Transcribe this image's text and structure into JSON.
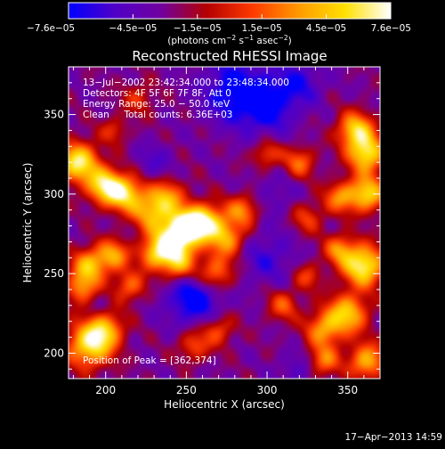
{
  "chart_data": {
    "type": "heatmap",
    "title": "Reconstructed RHESSI Image",
    "xlabel": "Heliocentric X (arcsec)",
    "ylabel": "Heliocentric Y (arcsec)",
    "xlim": [
      177,
      370
    ],
    "ylim": [
      184,
      380
    ],
    "xticks": [
      200,
      250,
      300,
      350
    ],
    "yticks": [
      200,
      250,
      300,
      350
    ],
    "colorbar": {
      "min": -7.6e-05,
      "max": 7.6e-05,
      "tick_labels": [
        "−7.6e−05",
        "−4.5e−05",
        "−1.5e−05",
        "1.5e−05",
        "4.5e−05",
        "7.6e−05"
      ],
      "units_main": "(photons cm",
      "units_exp1": "−2",
      "units_mid": " s",
      "units_exp2": "−1",
      "units_tail": " asec",
      "units_exp3": "−2",
      "units_close": ")"
    },
    "colormap": [
      "#0000ff",
      "#5000c8",
      "#7000a0",
      "#b40000",
      "#ff3a00",
      "#ff9a00",
      "#ffe000",
      "#ffffff"
    ],
    "annotations": [
      "13−Jul−2002 23:42:34.000 to 23:48:34.000",
      "Detectors: 4F 5F 6F 7F 8F, Att 0",
      "Energy Range: 25.0 − 50.0 keV",
      "Clean     Total counts: 6.36E+03"
    ],
    "peak_label": "Position of Peak = [362,374]",
    "peak_position": [
      362,
      374
    ],
    "timestamp": "17−Apr−2013 14:59",
    "sources": [
      {
        "x": 183,
        "y": 320,
        "v": 0.85,
        "s": 9
      },
      {
        "x": 200,
        "y": 305,
        "v": 0.8,
        "s": 8
      },
      {
        "x": 213,
        "y": 300,
        "v": 0.7,
        "s": 8
      },
      {
        "x": 238,
        "y": 298,
        "v": 0.55,
        "s": 8
      },
      {
        "x": 228,
        "y": 288,
        "v": 0.55,
        "s": 8
      },
      {
        "x": 242,
        "y": 272,
        "v": 0.85,
        "s": 9
      },
      {
        "x": 252,
        "y": 280,
        "v": 0.8,
        "s": 8
      },
      {
        "x": 263,
        "y": 283,
        "v": 0.65,
        "s": 8
      },
      {
        "x": 245,
        "y": 256,
        "v": 0.6,
        "s": 8
      },
      {
        "x": 275,
        "y": 272,
        "v": 0.6,
        "s": 8
      },
      {
        "x": 268,
        "y": 250,
        "v": 0.55,
        "s": 8
      },
      {
        "x": 285,
        "y": 290,
        "v": 0.5,
        "s": 7
      },
      {
        "x": 230,
        "y": 262,
        "v": 0.55,
        "s": 7
      },
      {
        "x": 190,
        "y": 255,
        "v": 0.65,
        "s": 8
      },
      {
        "x": 205,
        "y": 262,
        "v": 0.55,
        "s": 7
      },
      {
        "x": 185,
        "y": 240,
        "v": 0.5,
        "s": 7
      },
      {
        "x": 190,
        "y": 205,
        "v": 0.8,
        "s": 10
      },
      {
        "x": 200,
        "y": 215,
        "v": 0.55,
        "s": 8
      },
      {
        "x": 215,
        "y": 242,
        "v": 0.45,
        "s": 7
      },
      {
        "x": 355,
        "y": 340,
        "v": 0.75,
        "s": 8
      },
      {
        "x": 362,
        "y": 325,
        "v": 0.8,
        "s": 8
      },
      {
        "x": 362,
        "y": 300,
        "v": 0.75,
        "s": 8
      },
      {
        "x": 345,
        "y": 298,
        "v": 0.5,
        "s": 7
      },
      {
        "x": 360,
        "y": 255,
        "v": 0.9,
        "s": 9
      },
      {
        "x": 345,
        "y": 265,
        "v": 0.5,
        "s": 7
      },
      {
        "x": 350,
        "y": 225,
        "v": 0.7,
        "s": 9
      },
      {
        "x": 335,
        "y": 215,
        "v": 0.55,
        "s": 8
      },
      {
        "x": 362,
        "y": 195,
        "v": 0.65,
        "s": 8
      },
      {
        "x": 335,
        "y": 195,
        "v": 0.5,
        "s": 7
      },
      {
        "x": 320,
        "y": 320,
        "v": 0.45,
        "s": 7
      },
      {
        "x": 300,
        "y": 325,
        "v": 0.4,
        "s": 6
      },
      {
        "x": 325,
        "y": 285,
        "v": 0.35,
        "s": 7
      },
      {
        "x": 270,
        "y": 215,
        "v": 0.4,
        "s": 7
      },
      {
        "x": 255,
        "y": 205,
        "v": 0.4,
        "s": 7
      },
      {
        "x": 310,
        "y": 230,
        "v": 0.4,
        "s": 7
      },
      {
        "x": 325,
        "y": 248,
        "v": 0.35,
        "s": 6
      },
      {
        "x": 220,
        "y": 360,
        "v": 0.3,
        "s": 7
      },
      {
        "x": 205,
        "y": 340,
        "v": 0.3,
        "s": 6
      },
      {
        "x": 280,
        "y": 365,
        "v": -0.45,
        "s": 14
      },
      {
        "x": 300,
        "y": 355,
        "v": -0.4,
        "s": 12
      },
      {
        "x": 320,
        "y": 370,
        "v": -0.3,
        "s": 10
      },
      {
        "x": 255,
        "y": 235,
        "v": -0.5,
        "s": 12
      },
      {
        "x": 300,
        "y": 260,
        "v": -0.25,
        "s": 12
      },
      {
        "x": 230,
        "y": 320,
        "v": -0.2,
        "s": 8
      },
      {
        "x": 320,
        "y": 190,
        "v": -0.2,
        "s": 8
      },
      {
        "x": 305,
        "y": 300,
        "v": -0.15,
        "s": 10
      },
      {
        "x": 195,
        "y": 230,
        "v": -0.1,
        "s": 6
      }
    ]
  }
}
